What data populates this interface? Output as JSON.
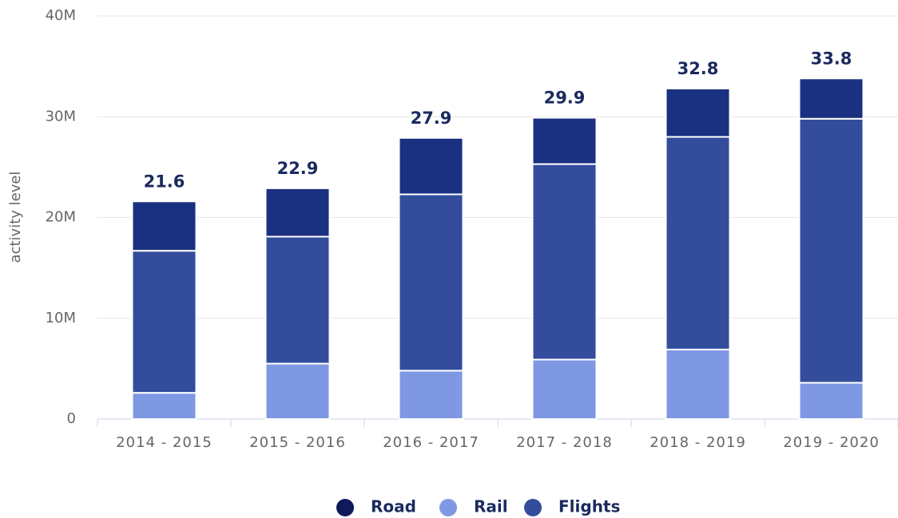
{
  "chart_data": {
    "type": "stacked_bar",
    "y_label": "activity level",
    "categories": [
      "2014 - 2015",
      "2015 - 2016",
      "2016 - 2017",
      "2017 - 2018",
      "2018 - 2019",
      "2019 - 2020"
    ],
    "series": [
      {
        "name": "Road",
        "color": "#1a3080",
        "values": [
          4900000,
          4800000,
          5600000,
          4600000,
          4800000,
          4000000
        ]
      },
      {
        "name": "Rail",
        "color": "#7f98e3",
        "values": [
          2600000,
          5500000,
          4800000,
          5900000,
          6900000,
          3600000
        ]
      },
      {
        "name": "Flights",
        "color": "#334d9c",
        "values": [
          14100000,
          12600000,
          17500000,
          19400000,
          21100000,
          26200000
        ]
      }
    ],
    "totals": [
      21600000,
      22900000,
      27900000,
      29900000,
      32800000,
      33800000
    ],
    "value_labels": [
      "21.6",
      "22.9",
      "27.9",
      "29.9",
      "32.8",
      "33.8"
    ],
    "ylim": [
      0,
      40000000
    ],
    "yticks": [
      0,
      {
        "value": 10000000,
        "label": "10M"
      },
      {
        "value": 20000000,
        "label": "20M"
      },
      {
        "value": 30000000,
        "label": "30M"
      },
      {
        "value": 40000000,
        "label": "40M"
      }
    ],
    "grid": true
  }
}
